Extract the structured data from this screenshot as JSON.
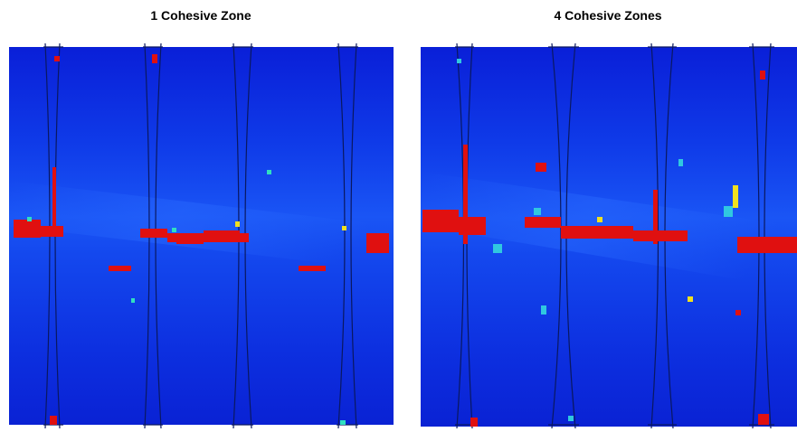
{
  "panels": [
    {
      "title": "1 Cohesive Zone"
    },
    {
      "title": "4 Cohesive Zones"
    }
  ]
}
